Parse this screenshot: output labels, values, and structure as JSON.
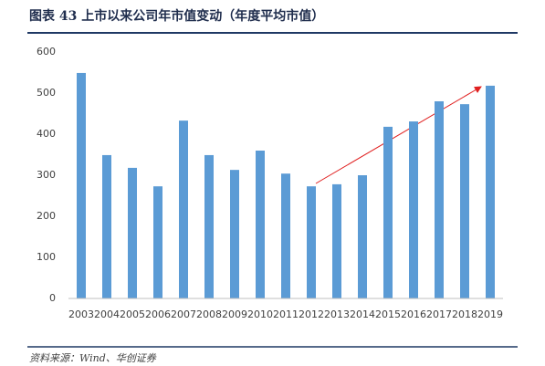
{
  "chart_data": {
    "type": "bar",
    "title": "图表 43  上市以来公司年市值变动（年度平均市值）",
    "source": "资料来源：Wind、华创证券",
    "categories": [
      "2003",
      "2004",
      "2005",
      "2006",
      "2007",
      "2008",
      "2009",
      "2010",
      "2011",
      "2012",
      "2013",
      "2014",
      "2015",
      "2016",
      "2017",
      "2018",
      "2019"
    ],
    "values": [
      549,
      349,
      318,
      273,
      433,
      349,
      313,
      360,
      304,
      273,
      278,
      300,
      418,
      431,
      480,
      473,
      518
    ],
    "color": "#5b9bd5",
    "ylim": [
      0,
      600
    ],
    "yticks": [
      0,
      100,
      200,
      300,
      400,
      500,
      600
    ],
    "grid": false
  }
}
